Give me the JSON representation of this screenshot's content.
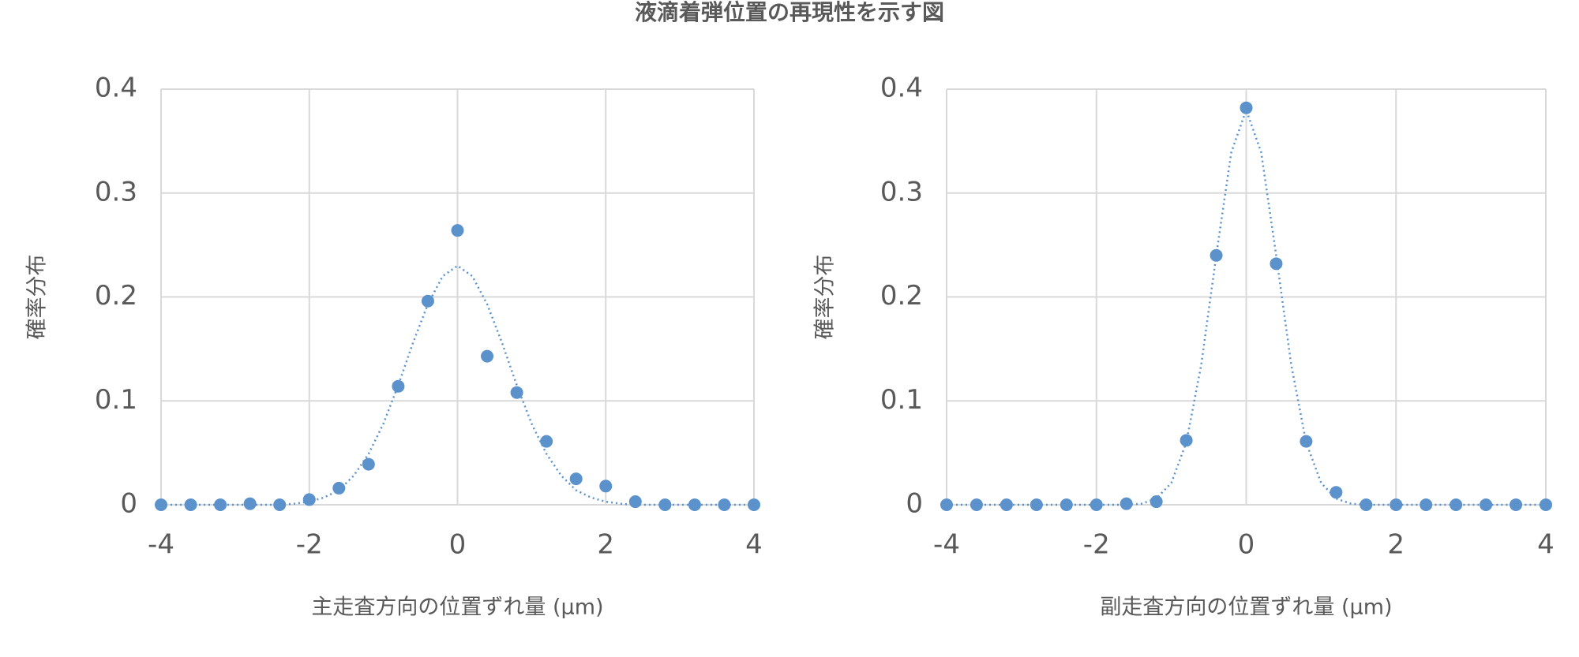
{
  "title": "液滴着弾位置の再現性を示す図",
  "chart_data": [
    {
      "type": "scatter",
      "xlabel": "主走査方向の位置ずれ量 (µm)",
      "ylabel": "確率分布",
      "xlim": [
        -4,
        4
      ],
      "xticks": [
        -4,
        -2,
        0,
        2,
        4
      ],
      "ylim": [
        0,
        0.4
      ],
      "yticks": [
        0,
        0.1,
        0.2,
        0.3,
        0.4
      ],
      "grid": true,
      "series": [
        {
          "kind": "points",
          "color": "#5b92cc",
          "x": [
            -4,
            -3.6,
            -3.2,
            -2.8,
            -2.4,
            -2,
            -1.6,
            -1.2,
            -0.8,
            -0.4,
            0,
            0.4,
            0.8,
            1.2,
            1.6,
            2,
            2.4,
            2.8,
            3.2,
            3.6,
            4
          ],
          "values": [
            0,
            0,
            0,
            0.001,
            0,
            0.005,
            0.016,
            0.039,
            0.114,
            0.196,
            0.264,
            0.143,
            0.108,
            0.061,
            0.025,
            0.018,
            0.003,
            0,
            0,
            0,
            0
          ]
        },
        {
          "kind": "dotted-line",
          "color": "#5b92cc",
          "x": [
            -4,
            -3.6,
            -3.2,
            -2.8,
            -2.4,
            -2.2,
            -2,
            -1.8,
            -1.6,
            -1.4,
            -1.2,
            -1,
            -0.8,
            -0.6,
            -0.4,
            -0.2,
            0,
            0.2,
            0.4,
            0.6,
            0.8,
            1,
            1.2,
            1.4,
            1.6,
            1.8,
            2,
            2.2,
            2.4,
            2.8,
            3.2,
            3.6,
            4
          ],
          "values": [
            0,
            0,
            0,
            0,
            0,
            0.001,
            0.003,
            0.007,
            0.014,
            0.028,
            0.049,
            0.078,
            0.115,
            0.156,
            0.193,
            0.22,
            0.23,
            0.22,
            0.193,
            0.156,
            0.115,
            0.078,
            0.049,
            0.028,
            0.014,
            0.007,
            0.003,
            0.001,
            0,
            0,
            0,
            0,
            0
          ]
        }
      ]
    },
    {
      "type": "scatter",
      "xlabel": "副走査方向の位置ずれ量 (µm)",
      "ylabel": "確率分布",
      "xlim": [
        -4,
        4
      ],
      "xticks": [
        -4,
        -2,
        0,
        2,
        4
      ],
      "ylim": [
        0,
        0.4
      ],
      "yticks": [
        0,
        0.1,
        0.2,
        0.3,
        0.4
      ],
      "grid": true,
      "series": [
        {
          "kind": "points",
          "color": "#5b92cc",
          "x": [
            -4,
            -3.6,
            -3.2,
            -2.8,
            -2.4,
            -2,
            -1.6,
            -1.2,
            -0.8,
            -0.4,
            0,
            0.4,
            0.8,
            1.2,
            1.6,
            2,
            2.4,
            2.8,
            3.2,
            3.6,
            4
          ],
          "values": [
            0,
            0,
            0,
            0,
            0,
            0,
            0.001,
            0.003,
            0.062,
            0.24,
            0.382,
            0.232,
            0.061,
            0.012,
            0,
            0,
            0,
            0,
            0,
            0,
            0
          ]
        },
        {
          "kind": "dotted-line",
          "color": "#5b92cc",
          "x": [
            -4,
            -3.2,
            -2.4,
            -1.8,
            -1.6,
            -1.4,
            -1.2,
            -1,
            -0.8,
            -0.6,
            -0.4,
            -0.2,
            0,
            0.2,
            0.4,
            0.6,
            0.8,
            1,
            1.2,
            1.4,
            1.6,
            1.8,
            2.4,
            3.2,
            4
          ],
          "values": [
            0,
            0,
            0,
            0,
            0,
            0.001,
            0.006,
            0.021,
            0.06,
            0.135,
            0.24,
            0.339,
            0.38,
            0.339,
            0.24,
            0.135,
            0.06,
            0.021,
            0.006,
            0.001,
            0,
            0,
            0,
            0,
            0
          ]
        }
      ]
    }
  ]
}
